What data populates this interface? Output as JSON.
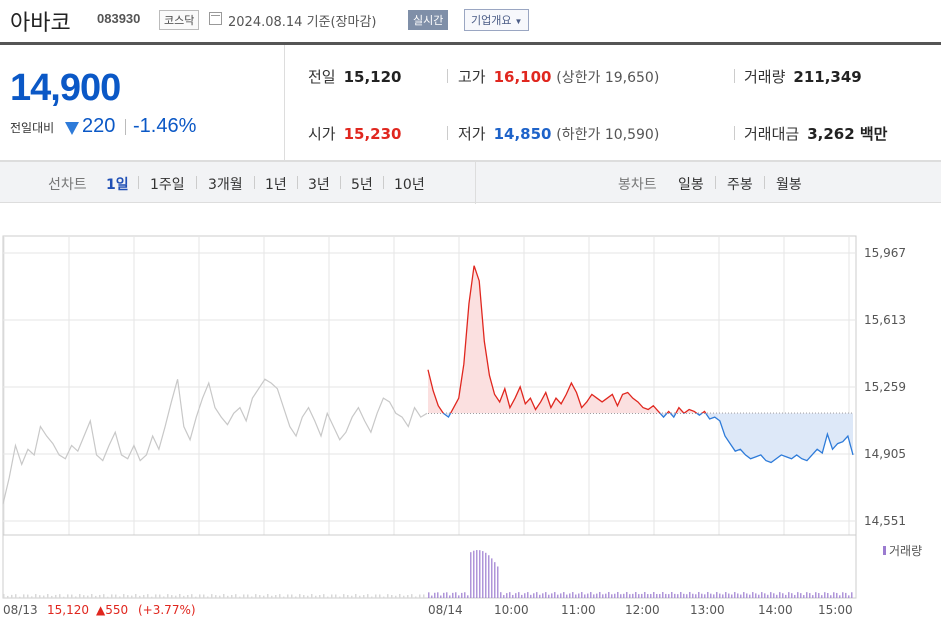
{
  "stock": {
    "name": "아바코",
    "code": "083930",
    "market": "코스닥",
    "date": "2024.08.14 기준(장마감)",
    "realtime": "실시간",
    "company_info": "기업개요",
    "price": "14,900",
    "change_label": "전일대비",
    "change": "220",
    "change_pct": "-1.46%"
  },
  "stats": {
    "prev_close": {
      "label": "전일",
      "value": "15,120"
    },
    "high": {
      "label": "고가",
      "value": "16,100",
      "sub": "(상한가 19,650)"
    },
    "volume": {
      "label": "거래량",
      "value": "211,349"
    },
    "open": {
      "label": "시가",
      "value": "15,230"
    },
    "low": {
      "label": "저가",
      "value": "14,850",
      "sub": "(하한가 10,590)"
    },
    "amount": {
      "label": "거래대금",
      "value": "3,262 백만"
    }
  },
  "tabs": {
    "line_label": "선차트",
    "line_items": [
      "1일",
      "1주일",
      "3개월",
      "1년",
      "3년",
      "5년",
      "10년"
    ],
    "candle_label": "봉차트",
    "candle_items": [
      "일봉",
      "주봉",
      "월봉"
    ]
  },
  "chart_data": {
    "type": "line",
    "y_ticks": [
      "15,967",
      "15,613",
      "15,259",
      "14,905",
      "14,551"
    ],
    "ylim": [
      14551,
      15967
    ],
    "baseline": 15120,
    "x_ticks": [
      "08/14",
      "10:00",
      "11:00",
      "12:00",
      "13:00",
      "14:00",
      "15:00"
    ],
    "prev_day_label": "08/13",
    "prev_day_close": "15,120",
    "prev_day_change": "▲550",
    "prev_day_pct": "(+3.77%)",
    "volume_label": "거래량",
    "colors": {
      "up": "#e0271f",
      "down": "#2e7bd9",
      "prev": "#c8c8c8",
      "volume": "#9b7bd0"
    },
    "prev_series": [
      14640,
      14780,
      14950,
      14850,
      14930,
      14900,
      15050,
      15000,
      14960,
      14900,
      14880,
      14950,
      14920,
      15000,
      15080,
      14900,
      14870,
      14950,
      15020,
      14900,
      14880,
      14950,
      14870,
      14900,
      15000,
      14930,
      15050,
      15180,
      15300,
      15050,
      14980,
      15100,
      15200,
      15280,
      15150,
      15100,
      15060,
      15120,
      15150,
      15080,
      15200,
      15250,
      15300,
      15280,
      15250,
      15150,
      15050,
      15000,
      15100,
      15150,
      15080,
      15000,
      15120,
      15050,
      14980,
      15020,
      15100,
      15150,
      15080,
      15020,
      15120,
      15200,
      15180,
      15120,
      15100,
      15050,
      15150,
      15100,
      15120
    ],
    "today_series": [
      15350,
      15240,
      15160,
      15120,
      15100,
      15150,
      15200,
      15380,
      15700,
      15900,
      15820,
      15500,
      15320,
      15220,
      15180,
      15250,
      15150,
      15200,
      15260,
      15170,
      15200,
      15140,
      15180,
      15230,
      15150,
      15200,
      15170,
      15220,
      15280,
      15230,
      15150,
      15180,
      15220,
      15200,
      15180,
      15200,
      15220,
      15160,
      15220,
      15230,
      15200,
      15180,
      15150,
      15140,
      15160,
      15130,
      15100,
      15130,
      15100,
      15150,
      15120,
      15140,
      15130,
      15110,
      15130,
      15090,
      15100,
      15080,
      15000,
      14960,
      14920,
      14930,
      14900,
      14880,
      14890,
      14900,
      14870,
      14860,
      14880,
      14900,
      14890,
      14880,
      14900,
      14880,
      14870,
      14900,
      14930,
      14910,
      15010,
      14930,
      14960,
      14970,
      15000,
      14900
    ]
  }
}
